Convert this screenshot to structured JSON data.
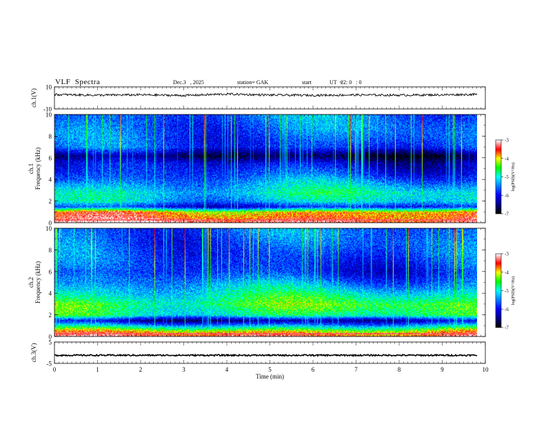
{
  "header": {
    "title": "VLF  Spectra",
    "date": "Dec.3   , 2025",
    "station": "station= GAK",
    "start_label": "start",
    "ut_label": "UT  =",
    "start_time": "22: 0   : 0"
  },
  "colors": {
    "background": "#ffffff",
    "axis": "#000000",
    "waveform": "#000000",
    "colormap": [
      "#000000",
      "#00008b",
      "#0000ff",
      "#0080ff",
      "#00ffff",
      "#00ff00",
      "#ffff00",
      "#ff0000",
      "#ffffff"
    ]
  },
  "chart_data": [
    {
      "type": "line",
      "panel": "ch1-waveform",
      "ylabel": "ch.1(V)",
      "ylim": [
        -10,
        10
      ],
      "yticks": [
        "10",
        "-10"
      ],
      "x": [
        0,
        1,
        2,
        3,
        4,
        5,
        6,
        7,
        8,
        9,
        9.8
      ],
      "values": [
        3,
        2.5,
        2.8,
        2.2,
        3.5,
        2.6,
        2.4,
        2.7,
        2.5,
        2.8,
        3.2
      ]
    },
    {
      "type": "heatmap",
      "panel": "ch1-spectrogram",
      "ylabel_prefix": "ch.1",
      "ylabel": "Frequency  (kHz)",
      "ylim": [
        0,
        10
      ],
      "yticks": [
        "0",
        "2",
        "4",
        "6",
        "8",
        "10"
      ],
      "xlim": [
        0,
        10
      ],
      "data_end_min": 9.8,
      "colorbar": {
        "label": "log(PSD)(V²/Hz)",
        "ticks": [
          "-3",
          "-4",
          "-5",
          "-6",
          "-7"
        ],
        "range": [
          -7,
          -3
        ]
      },
      "band_profile": [
        {
          "f": 0.1,
          "level": 0.95
        },
        {
          "f": 0.5,
          "level": 0.85
        },
        {
          "f": 1.0,
          "level": 0.8
        },
        {
          "f": 1.5,
          "level": 0.25
        },
        {
          "f": 2.0,
          "level": 0.45
        },
        {
          "f": 2.8,
          "level": 0.5
        },
        {
          "f": 3.5,
          "level": 0.42
        },
        {
          "f": 4.5,
          "level": 0.3
        },
        {
          "f": 5.5,
          "level": 0.22
        },
        {
          "f": 6.2,
          "level": 0.08
        },
        {
          "f": 7.0,
          "level": 0.3
        },
        {
          "f": 8.5,
          "level": 0.35
        },
        {
          "f": 10.0,
          "level": 0.35
        }
      ]
    },
    {
      "type": "heatmap",
      "panel": "ch2-spectrogram",
      "ylabel_prefix": "ch.2",
      "ylabel": "Frequency  (kHz)",
      "ylim": [
        0,
        10
      ],
      "yticks": [
        "0",
        "2",
        "4",
        "6",
        "8",
        "10"
      ],
      "xlim": [
        0,
        10
      ],
      "data_end_min": 9.8,
      "colorbar": {
        "label": "log(PSD)(V²/Hz)",
        "ticks": [
          "-3",
          "-4",
          "-5",
          "-6",
          "-7"
        ],
        "range": [
          -7,
          -3
        ]
      },
      "band_profile": [
        {
          "f": 0.1,
          "level": 0.9
        },
        {
          "f": 0.5,
          "level": 0.75
        },
        {
          "f": 1.0,
          "level": 0.45
        },
        {
          "f": 1.5,
          "level": 0.15
        },
        {
          "f": 2.0,
          "level": 0.55
        },
        {
          "f": 3.0,
          "level": 0.62
        },
        {
          "f": 4.0,
          "level": 0.5
        },
        {
          "f": 5.0,
          "level": 0.38
        },
        {
          "f": 6.0,
          "level": 0.28
        },
        {
          "f": 7.0,
          "level": 0.3
        },
        {
          "f": 8.5,
          "level": 0.33
        },
        {
          "f": 10.0,
          "level": 0.35
        }
      ]
    },
    {
      "type": "line",
      "panel": "ch3-waveform",
      "ylabel": "ch.3(V)",
      "ylim": [
        -5,
        5
      ],
      "yticks": [
        "5",
        "-5"
      ],
      "x": [
        0,
        9.8
      ],
      "values": [
        -1.2,
        -1.2
      ]
    }
  ],
  "xaxis": {
    "label": "Time  (min)",
    "ticks": [
      "0",
      "1",
      "2",
      "3",
      "4",
      "5",
      "6",
      "7",
      "8",
      "9",
      "10"
    ],
    "range": [
      0,
      10
    ]
  }
}
